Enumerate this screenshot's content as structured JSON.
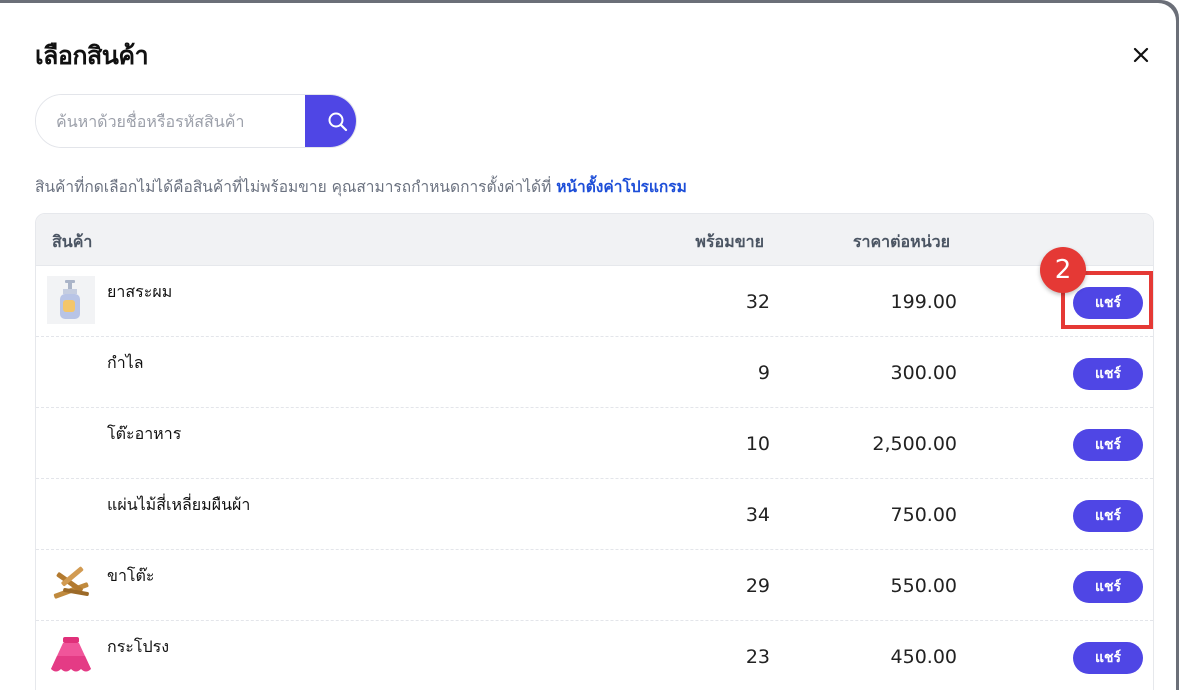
{
  "dialog": {
    "title": "เลือกสินค้า",
    "close_icon": "close-icon"
  },
  "search": {
    "placeholder": "ค้นหาด้วยชื่อหรือรหัสสินค้า",
    "value": "",
    "button_icon": "search-icon"
  },
  "note": {
    "text": "สินค้าที่กดเลือกไม่ได้คือสินค้าที่ไม่พร้อมขาย คุณสามารถกำหนดการตั้งค่าได้ที่ ",
    "link_text": "หน้าตั้งค่าโปรแกรม"
  },
  "table": {
    "headers": {
      "product": "สินค้า",
      "stock": "พร้อมขาย",
      "price": "ราคาต่อหน่วย"
    },
    "share_label": "แชร์",
    "rows": [
      {
        "name": "ยาสระผม",
        "stock": "32",
        "price": "199.00",
        "thumb": "shampoo-bottle"
      },
      {
        "name": "กำไล",
        "stock": "9",
        "price": "300.00",
        "thumb": ""
      },
      {
        "name": "โต๊ะอาหาร",
        "stock": "10",
        "price": "2,500.00",
        "thumb": ""
      },
      {
        "name": "แผ่นไม้สี่เหลี่ยมผืนผ้า",
        "stock": "34",
        "price": "750.00",
        "thumb": ""
      },
      {
        "name": "ขาโต๊ะ",
        "stock": "29",
        "price": "550.00",
        "thumb": "wooden-table-legs"
      },
      {
        "name": "กระโปรง",
        "stock": "23",
        "price": "450.00",
        "thumb": "pink-skirt"
      }
    ]
  },
  "annotation": {
    "step_number": "2",
    "color": "#e53935"
  },
  "colors": {
    "accent": "#4f46e5",
    "link": "#1d4ed8",
    "header_bg": "#f1f2f4"
  }
}
